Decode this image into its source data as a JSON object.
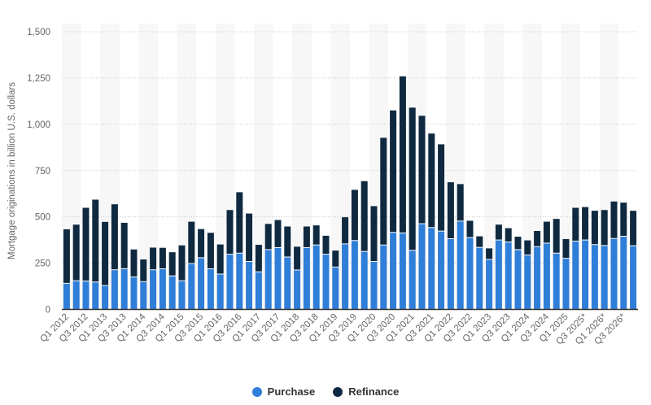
{
  "chart_data": {
    "type": "bar",
    "stacked": true,
    "ylabel": "Mortgage originations in billion U.S. dollars",
    "xlabel": "",
    "ylim": [
      0,
      1500
    ],
    "yticks": [
      0,
      250,
      500,
      750,
      1000,
      1250,
      1500
    ],
    "ytick_labels": [
      "0",
      "250",
      "500",
      "750",
      "1,000",
      "1,250",
      "1,500"
    ],
    "grid": true,
    "legend_position": "bottom",
    "categories": [
      "Q1 2012",
      "Q2 2012",
      "Q3 2012",
      "Q4 2012",
      "Q1 2013",
      "Q2 2013",
      "Q3 2013",
      "Q4 2013",
      "Q1 2014",
      "Q2 2014",
      "Q3 2014",
      "Q4 2014",
      "Q1 2015",
      "Q2 2015",
      "Q3 2015",
      "Q4 2015",
      "Q1 2016",
      "Q2 2016",
      "Q3 2016",
      "Q4 2016",
      "Q1 2017",
      "Q2 2017",
      "Q3 2017",
      "Q4 2017",
      "Q1 2018",
      "Q2 2018",
      "Q3 2018",
      "Q4 2018",
      "Q1 2019",
      "Q2 2019",
      "Q3 2019",
      "Q4 2019",
      "Q1 2020",
      "Q2 2020",
      "Q3 2020",
      "Q4 2020",
      "Q1 2021",
      "Q2 2021",
      "Q3 2021",
      "Q4 2021",
      "Q1 2022",
      "Q2 2022",
      "Q3 2022",
      "Q4 2022",
      "Q1 2023",
      "Q2 2023",
      "Q3 2023",
      "Q4 2023",
      "Q1 2024",
      "Q2 2024",
      "Q3 2024",
      "Q4 2024",
      "Q1 2025",
      "Q2 2025",
      "Q3 2025*",
      "Q4 2025*",
      "Q1 2026*",
      "Q2 2026*",
      "Q3 2026*",
      "Q4 2026*"
    ],
    "series": [
      {
        "name": "Purchase",
        "color": "#2f7ed8",
        "values": [
          139,
          153,
          151,
          146,
          127,
          212,
          218,
          173,
          148,
          212,
          217,
          179,
          153,
          246,
          277,
          217,
          189,
          296,
          302,
          257,
          201,
          321,
          332,
          281,
          211,
          332,
          346,
          296,
          227,
          352,
          370,
          311,
          257,
          346,
          414,
          411,
          317,
          461,
          440,
          421,
          380,
          475,
          386,
          333,
          268,
          373,
          362,
          321,
          292,
          337,
          356,
          302,
          274,
          367,
          373,
          348,
          343,
          381,
          393,
          342
        ]
      },
      {
        "name": "Refinance",
        "color": "#0f2a40",
        "values": [
          294,
          305,
          398,
          447,
          346,
          356,
          250,
          151,
          122,
          122,
          116,
          130,
          193,
          228,
          157,
          197,
          162,
          241,
          331,
          261,
          148,
          141,
          151,
          167,
          128,
          116,
          108,
          102,
          91,
          146,
          276,
          382,
          301,
          581,
          661,
          848,
          773,
          585,
          510,
          471,
          307,
          202,
          93,
          62,
          62,
          85,
          77,
          72,
          81,
          87,
          118,
          187,
          106,
          182,
          180,
          185,
          194,
          202,
          184,
          191
        ]
      }
    ]
  },
  "legend": {
    "purchase": "Purchase",
    "refinance": "Refinance"
  }
}
